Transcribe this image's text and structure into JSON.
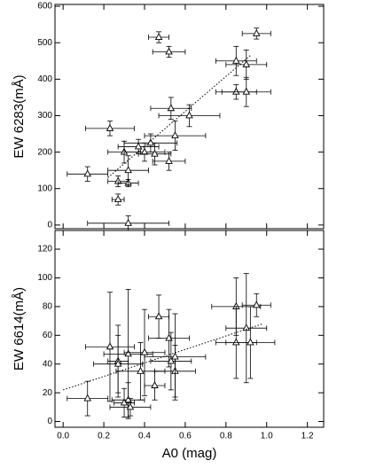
{
  "chart_data": [
    {
      "type": "scatter",
      "ylabel": "EW 6283(mÅ)",
      "xlim": [
        -0.04,
        1.28
      ],
      "ylim": [
        -10,
        605
      ],
      "xticks": [
        {
          "value": 0,
          "label": "0.0"
        },
        {
          "value": 0.2,
          "label": "0.2"
        },
        {
          "value": 0.4,
          "label": "0.4"
        },
        {
          "value": 0.6,
          "label": "0.6"
        },
        {
          "value": 0.8,
          "label": "0.8"
        },
        {
          "value": 1.0,
          "label": "1.0"
        },
        {
          "value": 1.2,
          "label": "1.2"
        }
      ],
      "yticks": [
        0,
        100,
        200,
        300,
        400,
        500,
        600
      ],
      "series": [
        {
          "type": "scatter",
          "color": "#000000",
          "x": [
            0.12,
            0.23,
            0.27,
            0.27,
            0.3,
            0.32,
            0.32,
            0.32,
            0.37,
            0.4,
            0.43,
            0.45,
            0.47,
            0.52,
            0.52,
            0.53,
            0.55,
            0.62,
            0.85,
            0.85,
            0.9,
            0.9,
            0.95
          ],
          "y": [
            140,
            265,
            70,
            120,
            200,
            5,
            115,
            150,
            215,
            200,
            225,
            195,
            515,
            175,
            475,
            320,
            245,
            300,
            365,
            450,
            440,
            365,
            525
          ],
          "xerr": [
            0.1,
            0.12,
            0.03,
            0.05,
            0.08,
            0.2,
            0.05,
            0.1,
            0.1,
            0.1,
            0.13,
            0.08,
            0.05,
            0.08,
            0.08,
            0.1,
            0.15,
            0.15,
            0.1,
            0.1,
            0.1,
            0.12,
            0.07
          ],
          "yerr": [
            20,
            20,
            15,
            15,
            30,
            20,
            10,
            40,
            20,
            25,
            25,
            30,
            15,
            25,
            15,
            30,
            40,
            30,
            20,
            40,
            40,
            40,
            15
          ]
        },
        {
          "type": "line",
          "color": "#000000",
          "x": [
            0.22,
            0.92
          ],
          "y": [
            130,
            465
          ]
        }
      ]
    },
    {
      "type": "scatter",
      "xlabel": "A0 (mag)",
      "ylabel": "EW 6614(mÅ)",
      "xlim": [
        -0.04,
        1.28
      ],
      "ylim": [
        -4,
        133
      ],
      "xticks": [
        {
          "value": 0,
          "label": "0.0"
        },
        {
          "value": 0.2,
          "label": "0.2"
        },
        {
          "value": 0.4,
          "label": "0.4"
        },
        {
          "value": 0.6,
          "label": "0.6"
        },
        {
          "value": 0.8,
          "label": "0.8"
        },
        {
          "value": 1.0,
          "label": "1.0"
        },
        {
          "value": 1.2,
          "label": "1.2"
        }
      ],
      "yticks": [
        0,
        20,
        40,
        60,
        80,
        100,
        120
      ],
      "series": [
        {
          "type": "scatter",
          "color": "#000000",
          "x": [
            0.12,
            0.23,
            0.27,
            0.27,
            0.3,
            0.32,
            0.32,
            0.33,
            0.38,
            0.4,
            0.45,
            0.47,
            0.52,
            0.53,
            0.55,
            0.55,
            0.85,
            0.85,
            0.9,
            0.92,
            0.95
          ],
          "y": [
            16,
            52,
            42,
            40,
            13,
            47,
            15,
            10,
            35,
            48,
            25,
            73,
            58,
            42,
            35,
            45,
            80,
            55,
            65,
            55,
            81
          ],
          "xerr": [
            0.1,
            0.12,
            0.05,
            0.12,
            0.05,
            0.12,
            0.08,
            0.1,
            0.12,
            0.1,
            0.05,
            0.05,
            0.1,
            0.1,
            0.1,
            0.15,
            0.12,
            0.1,
            0.1,
            0.12,
            0.07
          ],
          "yerr": [
            12,
            38,
            25,
            20,
            10,
            45,
            12,
            6,
            20,
            30,
            10,
            15,
            20,
            20,
            18,
            30,
            20,
            25,
            38,
            25,
            8
          ]
        },
        {
          "type": "line",
          "color": "#000000",
          "x": [
            0.0,
            0.98
          ],
          "y": [
            22,
            68
          ]
        }
      ]
    }
  ]
}
